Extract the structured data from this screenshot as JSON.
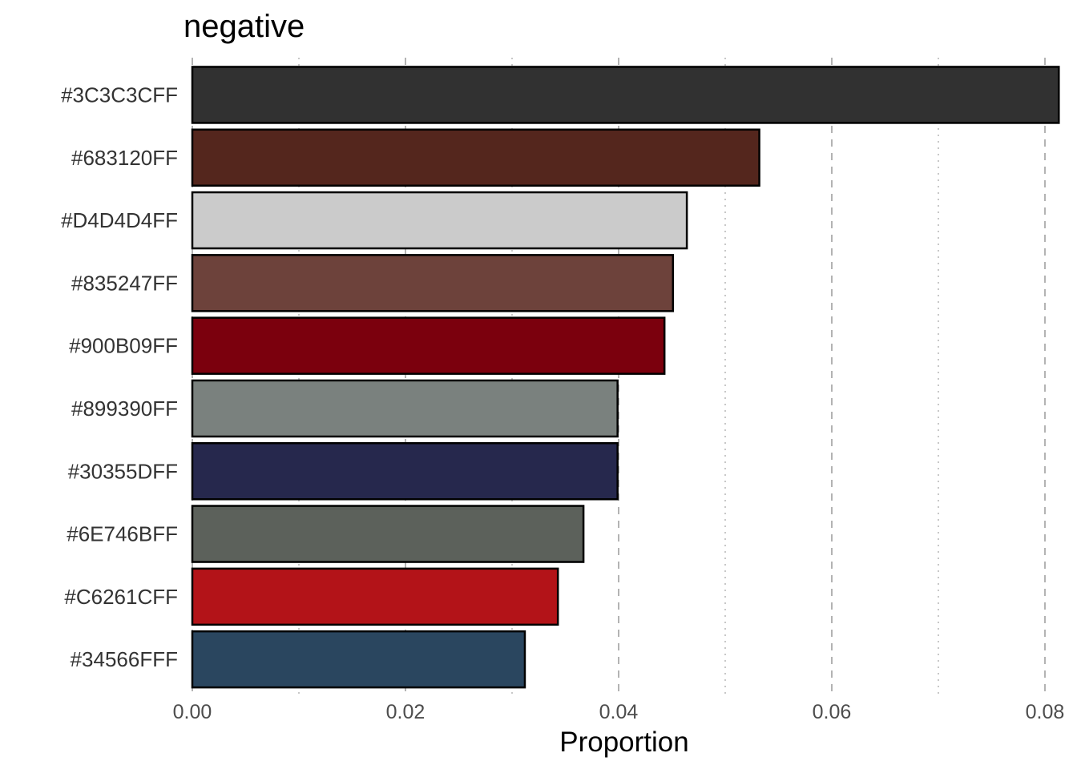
{
  "chart_data": {
    "type": "bar",
    "orientation": "horizontal",
    "title": "negative",
    "xlabel": "Proportion",
    "ylabel": "",
    "xlim": [
      0,
      0.081
    ],
    "xticks": [
      0.0,
      0.02,
      0.04,
      0.06,
      0.08
    ],
    "xtick_labels": [
      "0.00",
      "0.02",
      "0.04",
      "0.06",
      "0.08"
    ],
    "grid": "vertical dashed",
    "categories": [
      "#3C3C3CFF",
      "#683120FF",
      "#D4D4D4FF",
      "#835247FF",
      "#900B09FF",
      "#899390FF",
      "#30355DFF",
      "#6E746BFF",
      "#C6261CFF",
      "#34566FFF"
    ],
    "values": [
      0.0813,
      0.0532,
      0.0464,
      0.0451,
      0.0443,
      0.0399,
      0.0399,
      0.0367,
      0.0343,
      0.0312
    ],
    "colors": [
      "#313131",
      "#54261d",
      "#cbcbcb",
      "#6d423b",
      "#7b000d",
      "#7a817e",
      "#26284d",
      "#5c615b",
      "#b31318",
      "#2a465f"
    ]
  }
}
